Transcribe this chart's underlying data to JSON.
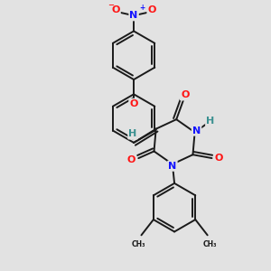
{
  "bg_color": "#e2e2e2",
  "bond_color": "#1a1a1a",
  "bond_width": 1.4,
  "atom_colors": {
    "N": "#1414ff",
    "O": "#ff1414",
    "H": "#3a9090",
    "C": "#1a1a1a"
  },
  "font_size": 7.5
}
